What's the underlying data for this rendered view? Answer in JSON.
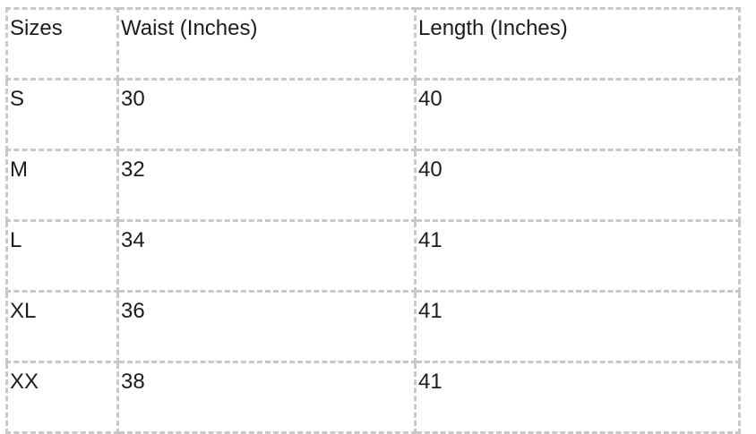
{
  "table": {
    "headers": [
      "Sizes",
      "Waist (Inches)",
      "Length (Inches)"
    ],
    "rows": [
      [
        "S",
        "30",
        "40"
      ],
      [
        "M",
        "32",
        "40"
      ],
      [
        "L",
        "34",
        "41"
      ],
      [
        "XL",
        "36",
        "41"
      ],
      [
        "XX",
        "38",
        "41"
      ]
    ]
  }
}
